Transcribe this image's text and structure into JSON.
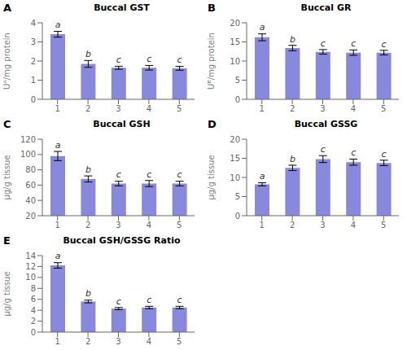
{
  "chart_data": [
    {
      "type": "bar",
      "label": "A",
      "title": "Buccal GST",
      "ylabel": "Uᴬ/mg protein",
      "categories": [
        "1",
        "2",
        "3",
        "4",
        "5"
      ],
      "values": [
        3.4,
        1.85,
        1.65,
        1.65,
        1.62
      ],
      "errors": [
        0.15,
        0.18,
        0.08,
        0.12,
        0.1
      ],
      "annotations": [
        "a",
        "b",
        "c",
        "c",
        "c"
      ],
      "color": "#8888dd",
      "ylim": [
        0,
        4
      ],
      "yticks": [
        0,
        1,
        2,
        3,
        4
      ]
    },
    {
      "type": "bar",
      "label": "B",
      "title": "Buccal GR",
      "ylabel": "Uᴮ/mg protein",
      "categories": [
        "1",
        "2",
        "3",
        "4",
        "5"
      ],
      "values": [
        16.2,
        13.4,
        12.4,
        12.2,
        12.2
      ],
      "errors": [
        0.9,
        0.7,
        0.6,
        0.7,
        0.6
      ],
      "annotations": [
        "a",
        "b",
        "c",
        "c",
        "c"
      ],
      "color": "#8888dd",
      "ylim": [
        0,
        20
      ],
      "yticks": [
        0,
        5,
        10,
        15,
        20
      ]
    },
    {
      "type": "bar",
      "label": "C",
      "title": "Buccal GSH",
      "ylabel": "μg/g tissue",
      "categories": [
        "1",
        "2",
        "3",
        "4",
        "5"
      ],
      "values": [
        98,
        68,
        62,
        62,
        62
      ],
      "errors": [
        6,
        4,
        3,
        4,
        3
      ],
      "annotations": [
        "a",
        "b",
        "c",
        "c",
        "c"
      ],
      "color": "#8888dd",
      "ylim": [
        20,
        120
      ],
      "yticks": [
        20,
        40,
        60,
        80,
        100,
        120
      ]
    },
    {
      "type": "bar",
      "label": "D",
      "title": "Buccal GSSG",
      "ylabel": "μg/g tissue",
      "categories": [
        "1",
        "2",
        "3",
        "4",
        "5"
      ],
      "values": [
        8.2,
        12.5,
        14.8,
        14.0,
        13.8
      ],
      "errors": [
        0.4,
        0.7,
        0.9,
        0.8,
        0.7
      ],
      "annotations": [
        "a",
        "b",
        "c",
        "c",
        "c"
      ],
      "color": "#8888dd",
      "ylim": [
        0,
        20
      ],
      "yticks": [
        0,
        5,
        10,
        15,
        20
      ]
    },
    {
      "type": "bar",
      "label": "E",
      "title": "Buccal GSH/GSSG Ratio",
      "ylabel": "μg/g tissue",
      "categories": [
        "1",
        "2",
        "3",
        "4",
        "5"
      ],
      "values": [
        12.2,
        5.6,
        4.3,
        4.5,
        4.5
      ],
      "errors": [
        0.5,
        0.25,
        0.2,
        0.22,
        0.22
      ],
      "annotations": [
        "a",
        "b",
        "c",
        "c",
        "c"
      ],
      "color": "#8888dd",
      "ylim": [
        0,
        14
      ],
      "yticks": [
        0,
        2,
        4,
        6,
        8,
        10,
        12,
        14
      ]
    }
  ]
}
